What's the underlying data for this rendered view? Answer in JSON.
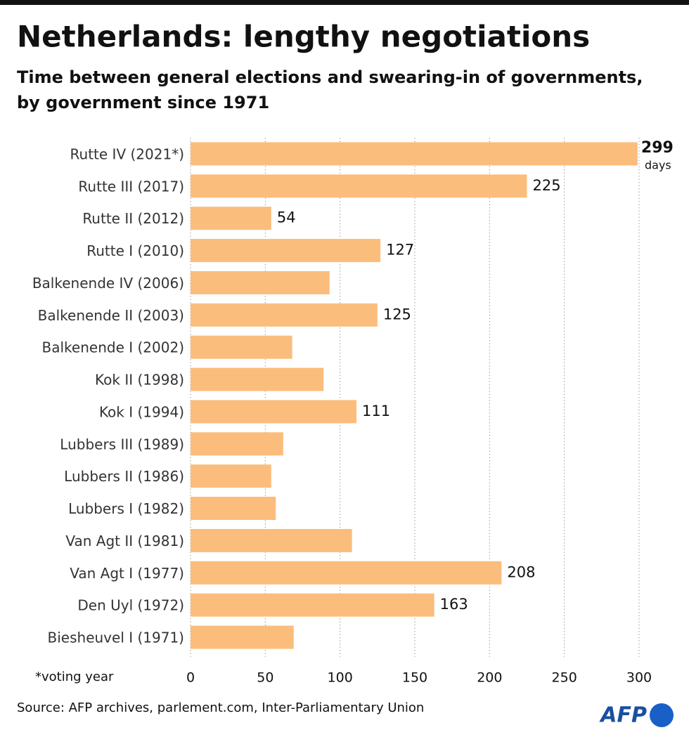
{
  "chart_data": {
    "type": "bar",
    "orientation": "horizontal",
    "title": "Netherlands: lengthy negotiations",
    "subtitle": [
      "Time between general elections and swearing-in of governments,",
      "by government since 1971"
    ],
    "categories": [
      "Rutte IV (2021*)",
      "Rutte III (2017)",
      "Rutte II (2012)",
      "Rutte I (2010)",
      "Balkenende IV (2006)",
      "Balkenende II (2003)",
      "Balkenende I (2002)",
      "Kok II (1998)",
      "Kok I (1994)",
      "Lubbers III (1989)",
      "Lubbers II (1986)",
      "Lubbers I (1982)",
      "Van Agt II (1981)",
      "Van Agt I (1977)",
      "Den Uyl (1972)",
      "Biesheuvel I (1971)"
    ],
    "values": [
      299,
      225,
      54,
      127,
      93,
      125,
      68,
      89,
      111,
      62,
      54,
      57,
      108,
      208,
      163,
      69
    ],
    "value_labels": [
      "299",
      "225",
      "54",
      "127",
      null,
      "125",
      null,
      null,
      "111",
      null,
      null,
      null,
      null,
      "208",
      "163",
      null
    ],
    "value_unit": "days",
    "color": "#fbbd7c",
    "xlim": [
      0,
      300
    ],
    "xticks": [
      0,
      50,
      100,
      150,
      200,
      250,
      300
    ],
    "grid": true,
    "footnote": "*voting year",
    "source": "Source: AFP archives, parlement.com, Inter-Parliamentary Union",
    "logo": "AFP"
  }
}
